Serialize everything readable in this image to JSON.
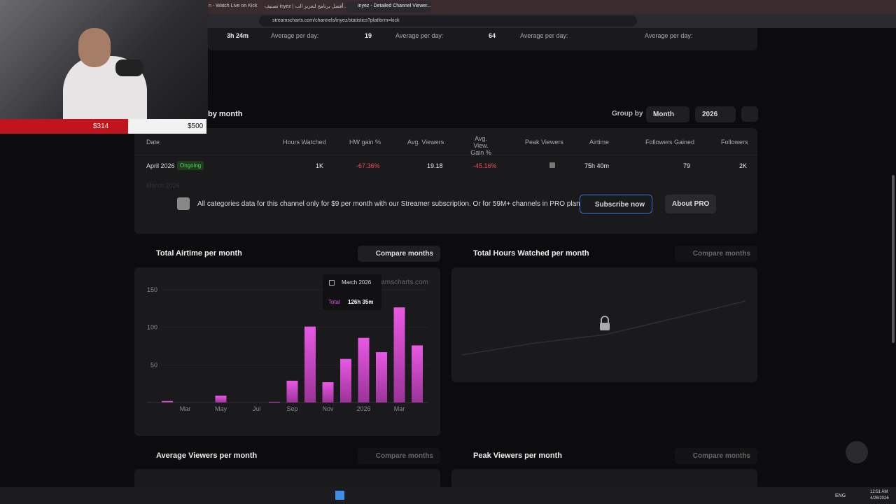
{
  "browser": {
    "tabs": [
      "n - Watch Live on Kick",
      "تصنيف inyez | أفضل برنامج لتعزيز الب...",
      "inyez - Detailed Channel Viewer..."
    ],
    "url": "streamscharts.com/channels/inyez/statistics?platform=kick"
  },
  "overlay": {
    "raised": "$314",
    "goal": "$500"
  },
  "stats_row": {
    "first": "3h 24m",
    "label": "Average per day:",
    "v1": "19",
    "v2": "64"
  },
  "section": {
    "title": "by month",
    "group_by": "Group by",
    "group": "Month",
    "year": "2026"
  },
  "table": {
    "headers": [
      "Date",
      "Hours Watched",
      "HW gain %",
      "Avg. Viewers",
      "Avg. View. Gain %",
      "Peak Viewers",
      "Airtime",
      "Followers Gained",
      "Followers"
    ],
    "row": {
      "date": "April 2026",
      "badge": "Ongoing",
      "hours": "1K",
      "hw_gain": "-67.36%",
      "avg": "19.18",
      "avg_gain": "-45.16%",
      "airtime": "75h 40m",
      "followers_gained": "79",
      "followers": "2K"
    },
    "faded_row": "March 2026"
  },
  "paywall": {
    "text": "All categories data for this channel only for $9 per month with our Streamer subscription. Or for 59M+ channels in PRO plan.",
    "subscribe": "Subscribe now",
    "about": "About PRO"
  },
  "panels": {
    "airtime": "Total Airtime per month",
    "hours": "Total Hours Watched per month",
    "avg": "Average Viewers per month",
    "peak": "Peak Viewers per month",
    "compare": "Compare months"
  },
  "chart_data": {
    "type": "bar",
    "categories": [
      null,
      "Mar",
      null,
      "May",
      null,
      "Jul",
      null,
      "Sep",
      null,
      "Nov",
      null,
      "2026",
      null,
      "Mar",
      null
    ],
    "values": [
      2,
      0,
      0,
      9,
      0,
      0,
      1,
      29,
      101,
      27,
      58,
      86,
      67,
      126.58,
      76
    ],
    "ylim": [
      0,
      160
    ],
    "yticks": [
      50,
      100,
      150
    ],
    "color": "#e055dc",
    "watermark": "streamscharts.com",
    "tooltip": {
      "title": "March 2026",
      "label": "Total",
      "value": "126h 35m"
    }
  },
  "taskbar": {
    "lang": "ENG",
    "time": "12:51 AM",
    "date": "4/26/2026"
  }
}
